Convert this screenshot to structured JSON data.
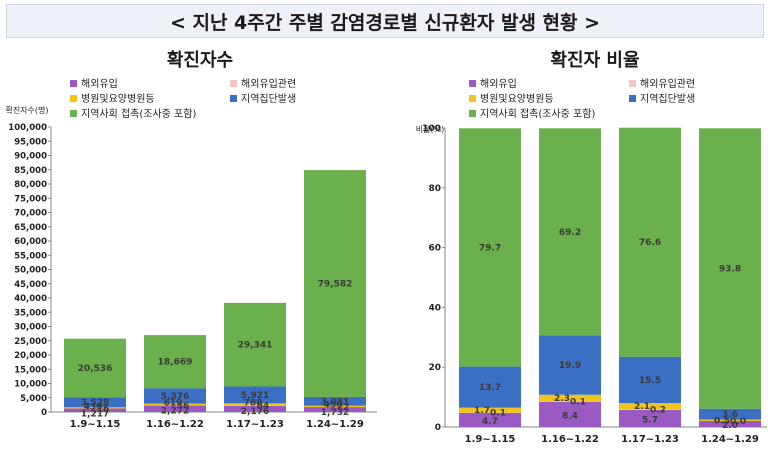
{
  "page_title": "< 지난 4주간 주별 감염경로별 신규환자 발생 현황 >",
  "chart_data": [
    {
      "type": "bar",
      "stacked": true,
      "title": "확진자수",
      "ylabel": "확진자수(명)",
      "ylim": [
        0,
        100000
      ],
      "yticks": [
        0,
        5000,
        10000,
        15000,
        20000,
        25000,
        30000,
        35000,
        40000,
        45000,
        50000,
        55000,
        60000,
        65000,
        70000,
        75000,
        80000,
        85000,
        90000,
        95000,
        100000
      ],
      "ytick_labels": [
        "0",
        "5,000",
        "10,000",
        "15,000",
        "20,000",
        "25,000",
        "30,000",
        "35,000",
        "40,000",
        "45,000",
        "50,000",
        "55,000",
        "60,000",
        "65,000",
        "70,000",
        "75,000",
        "80,000",
        "85,000",
        "90,000",
        "95,000",
        "100,000"
      ],
      "categories": [
        "1.9~1.15",
        "1.16~1.22",
        "1.17~1.23",
        "1.24~1.29"
      ],
      "series": [
        {
          "name": "해외유입",
          "color": "#9b59c4",
          "values": [
            1217,
            2272,
            2176,
            1732
          ],
          "labels": [
            "1,217",
            "2,272",
            "2,176",
            "1,732"
          ]
        },
        {
          "name": "해외유입관련",
          "color": "#f4c7c3",
          "values": [
            16,
            56,
            64,
            22
          ],
          "labels": [
            "16",
            "56",
            "64",
            "22"
          ]
        },
        {
          "name": "병원및요양병원등",
          "color": "#f2c318",
          "values": [
            430,
            619,
            788,
            450
          ],
          "labels": [
            "430",
            "619",
            "788",
            "450"
          ]
        },
        {
          "name": "지역집단발생",
          "color": "#3a6fc4",
          "values": [
            3528,
            5376,
            5921,
            3081
          ],
          "labels": [
            "3,528",
            "5,376",
            "5,921",
            "3,081"
          ]
        },
        {
          "name": "지역사회 접촉(조사중 포함)",
          "color": "#6ab04c",
          "values": [
            20536,
            18669,
            29341,
            79582
          ],
          "labels": [
            "20,536",
            "18,669",
            "29,341",
            "79,582"
          ]
        }
      ],
      "legend": [
        "해외유입",
        "해외유입관련",
        "병원및요양병원등",
        "지역집단발생",
        "지역사회 접촉(조사중 포함)"
      ]
    },
    {
      "type": "bar",
      "stacked": true,
      "title": "확진자 비율",
      "ylabel": "비율(%)",
      "ylim": [
        0,
        100
      ],
      "yticks": [
        0,
        20,
        40,
        60,
        80,
        100
      ],
      "ytick_labels": [
        "0",
        "20",
        "40",
        "60",
        "80",
        "100"
      ],
      "categories": [
        "1.9~1.15",
        "1.16~1.22",
        "1.17~1.23",
        "1.24~1.29"
      ],
      "series": [
        {
          "name": "해외유입",
          "color": "#9b59c4",
          "values": [
            4.7,
            8.4,
            5.7,
            2.0
          ],
          "labels": [
            "4.7",
            "8.4",
            "5.7",
            "2.0"
          ]
        },
        {
          "name": "해외유입관련",
          "color": "#f4c7c3",
          "values": [
            0.1,
            0.1,
            0.2,
            0.0
          ],
          "labels": [
            "0.1",
            "0.1",
            "0.2",
            "0.0"
          ]
        },
        {
          "name": "병원및요양병원등",
          "color": "#f2c318",
          "values": [
            1.7,
            2.3,
            2.1,
            0.5
          ],
          "labels": [
            "1.7",
            "2.3",
            "2.1",
            "0.5"
          ]
        },
        {
          "name": "지역집단발생",
          "color": "#3a6fc4",
          "values": [
            13.7,
            19.9,
            15.5,
            3.6
          ],
          "labels": [
            "13.7",
            "19.9",
            "15.5",
            "3.6"
          ]
        },
        {
          "name": "지역사회 접촉(조사중 포함)",
          "color": "#6ab04c",
          "values": [
            79.7,
            69.2,
            76.6,
            93.8
          ],
          "labels": [
            "79.7",
            "69.2",
            "76.6",
            "93.8"
          ]
        }
      ],
      "legend": [
        "해외유입",
        "해외유입관련",
        "병원및요양병원등",
        "지역집단발생",
        "지역사회 접촉(조사중 포함)"
      ]
    }
  ]
}
